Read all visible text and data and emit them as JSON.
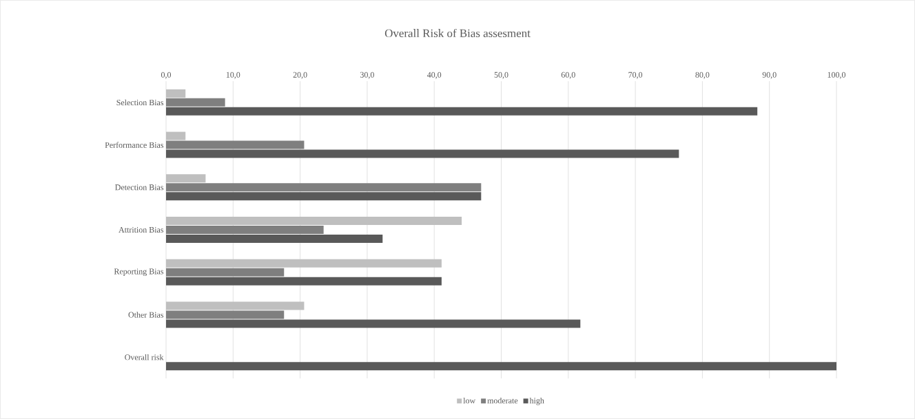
{
  "chart_data": {
    "type": "bar",
    "orientation": "horizontal",
    "title": "Overall Risk of Bias assesment",
    "categories": [
      "Selection Bias",
      "Performance Bias",
      "Detection Bias",
      "Attrition Bias",
      "Reporting Bias",
      "Other Bias",
      "Overall risk"
    ],
    "series": [
      {
        "name": "low",
        "color": "#bfbfbf",
        "values": [
          2.9,
          2.9,
          5.9,
          44.1,
          41.1,
          20.6,
          0
        ]
      },
      {
        "name": "moderate",
        "color": "#7f7f7f",
        "values": [
          8.8,
          20.6,
          47.0,
          23.5,
          17.6,
          17.6,
          0
        ]
      },
      {
        "name": "high",
        "color": "#595959",
        "values": [
          88.2,
          76.5,
          47.0,
          32.3,
          41.1,
          61.8,
          100
        ]
      }
    ],
    "xlim": [
      0,
      100
    ],
    "xticks": [
      {
        "value": 0,
        "label": "0,0"
      },
      {
        "value": 10,
        "label": "10,0"
      },
      {
        "value": 20,
        "label": "20,0"
      },
      {
        "value": 30,
        "label": "30,0"
      },
      {
        "value": 40,
        "label": "40,0"
      },
      {
        "value": 50,
        "label": "50,0"
      },
      {
        "value": 60,
        "label": "60,0"
      },
      {
        "value": 70,
        "label": "70,0"
      },
      {
        "value": 80,
        "label": "80,0"
      },
      {
        "value": 90,
        "label": "90,0"
      },
      {
        "value": 100,
        "label": "100,0"
      }
    ],
    "grid": "x",
    "legend": "bottom"
  }
}
